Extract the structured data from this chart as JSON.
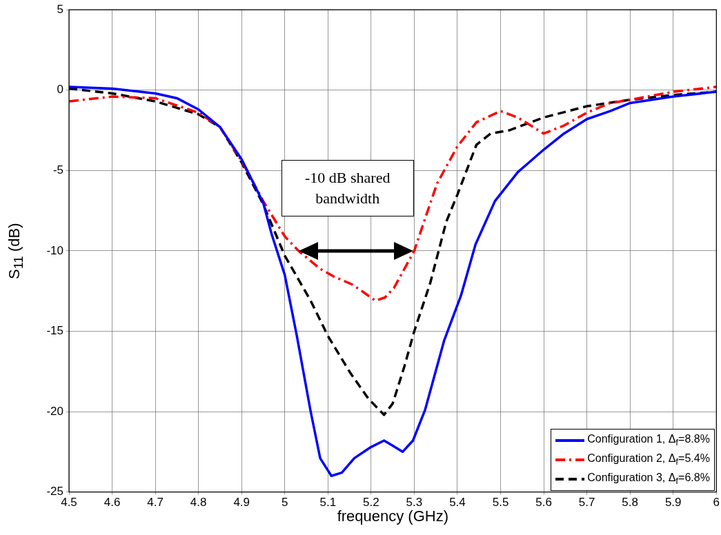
{
  "chart_data": {
    "type": "line",
    "xlabel": "frequency (GHz)",
    "ylabel": "S$_{11}$ (dB)",
    "xlim": [
      4.5,
      6
    ],
    "xticks": [
      4.5,
      4.6,
      4.7,
      4.8,
      4.9,
      5,
      5.1,
      5.2,
      5.3,
      5.4,
      5.5,
      5.6,
      5.7,
      5.8,
      5.9,
      6
    ],
    "ylim": [
      -25,
      5
    ],
    "yticks": [
      -25,
      -20,
      -15,
      -10,
      -5,
      0,
      5
    ],
    "grid": true,
    "legend": "bottom right",
    "marker": "none",
    "annotations": [
      "-10 dB shared bandwidth"
    ],
    "series": [
      {
        "name": "Configuration 1, Δ$_{f}$=8.8%",
        "color": "#0000ff",
        "line_style": "solid",
        "x": [
          4.5,
          4.6,
          4.7,
          4.75,
          4.8,
          4.85,
          4.9,
          4.95,
          4.97,
          5.0,
          5.028,
          5.06,
          5.082,
          5.108,
          5.132,
          5.161,
          5.2,
          5.23,
          5.249,
          5.273,
          5.297,
          5.325,
          5.369,
          5.408,
          5.442,
          5.487,
          5.54,
          5.6,
          5.647,
          5.7,
          5.754,
          5.8,
          5.9,
          6.0
        ],
        "values": [
          0.2,
          0.1,
          -0.2,
          -0.5,
          -1.2,
          -2.3,
          -4.3,
          -7.0,
          -9.0,
          -11.5,
          -15.3,
          -20.0,
          -22.9,
          -24.0,
          -23.8,
          -22.9,
          -22.2,
          -21.8,
          -22.1,
          -22.5,
          -21.8,
          -19.9,
          -15.6,
          -12.8,
          -9.6,
          -6.9,
          -5.1,
          -3.7,
          -2.7,
          -1.8,
          -1.3,
          -0.8,
          -0.4,
          -0.1
        ]
      },
      {
        "name": "Configuration 2, Δ$_{f}$=5.4%",
        "color": "#ff0000",
        "line_style": "dashdot",
        "x": [
          4.5,
          4.6,
          4.7,
          4.8,
          4.85,
          4.9,
          4.95,
          5.0,
          5.032,
          5.081,
          5.114,
          5.157,
          5.184,
          5.21,
          5.232,
          5.253,
          5.3,
          5.33,
          5.353,
          5.4,
          5.444,
          5.5,
          5.54,
          5.6,
          5.647,
          5.7,
          5.754,
          5.8,
          5.9,
          6.0
        ],
        "values": [
          -0.7,
          -0.4,
          -0.5,
          -1.4,
          -2.3,
          -4.4,
          -6.9,
          -9.1,
          -10.0,
          -11.1,
          -11.6,
          -12.1,
          -12.6,
          -13.1,
          -12.9,
          -12.3,
          -10.0,
          -7.6,
          -5.8,
          -3.5,
          -2.0,
          -1.3,
          -1.7,
          -2.7,
          -2.2,
          -1.4,
          -0.8,
          -0.6,
          -0.1,
          0.2
        ]
      },
      {
        "name": "Configuration 3, Δ$_{f}$=6.8%",
        "color": "#000000",
        "line_style": "dashed",
        "x": [
          4.5,
          4.6,
          4.7,
          4.8,
          4.85,
          4.9,
          4.95,
          5.0,
          5.06,
          5.1,
          5.152,
          5.194,
          5.23,
          5.25,
          5.277,
          5.3,
          5.337,
          5.374,
          5.4,
          5.444,
          5.477,
          5.52,
          5.6,
          5.7,
          5.8,
          5.9,
          6.0
        ],
        "values": [
          0.1,
          -0.2,
          -0.7,
          -1.5,
          -2.3,
          -4.5,
          -7.1,
          -10.3,
          -13.1,
          -15.3,
          -17.6,
          -19.2,
          -20.2,
          -19.5,
          -17.2,
          -15.0,
          -12.0,
          -8.2,
          -6.5,
          -3.4,
          -2.7,
          -2.5,
          -1.7,
          -1.0,
          -0.6,
          -0.3,
          -0.1
        ]
      }
    ]
  }
}
